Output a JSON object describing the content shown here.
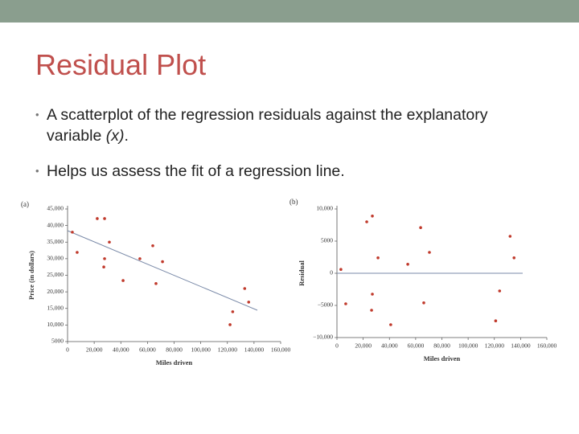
{
  "header": {
    "title": "Residual Plot"
  },
  "bullets": [
    {
      "parts": [
        "A scatterplot of the regression residuals against the explanatory variable ",
        "(x)",
        "."
      ]
    },
    {
      "parts": [
        "Helps us assess the fit of a regression line."
      ]
    }
  ],
  "chart_data": [
    {
      "type": "scatter",
      "panel": "(a)",
      "x_label": "Miles driven",
      "y_label": "Price (in dollars)",
      "color": "#c0392b",
      "x": [
        3600,
        7200,
        22300,
        27800,
        31400,
        27800,
        27200,
        41700,
        54300,
        64000,
        66400,
        71300,
        122000,
        124000,
        133000,
        136000
      ],
      "values": [
        38000,
        31900,
        42100,
        42100,
        35000,
        30000,
        27500,
        23400,
        30000,
        33900,
        22500,
        29100,
        10100,
        14000,
        21000,
        16900
      ],
      "regression_line": {
        "x": [
          0,
          142500
        ],
        "y": [
          38450,
          14450
        ]
      },
      "xlim": [
        0,
        160000
      ],
      "xticks": [
        0,
        {
          "value": 20000,
          "label": "20,000"
        },
        {
          "value": 40000,
          "label": "40,000"
        },
        {
          "value": 60000,
          "label": "60,000"
        },
        {
          "value": 80000,
          "label": "80,000"
        },
        {
          "value": 100000,
          "label": "100,000"
        },
        {
          "value": 120000,
          "label": "120,000"
        },
        {
          "value": 140000,
          "label": "140,000"
        },
        {
          "value": 160000,
          "label": "160,000"
        }
      ],
      "ylim": [
        5000,
        45000
      ],
      "yticks": [
        5000,
        {
          "value": 10000,
          "label": "10,000"
        },
        {
          "value": 15000,
          "label": "15,000"
        },
        {
          "value": 20000,
          "label": "20,000"
        },
        {
          "value": 25000,
          "label": "25,000"
        },
        {
          "value": 30000,
          "label": "30,000"
        },
        {
          "value": 35000,
          "label": "35,000"
        },
        {
          "value": 40000,
          "label": "40,000"
        },
        {
          "value": 45000,
          "label": "45,000"
        }
      ]
    },
    {
      "type": "scatter",
      "panel": "(b)",
      "x_label": "Miles driven",
      "y_label": "Residual",
      "color": "#c0392b",
      "x": [
        3000,
        6700,
        22700,
        27000,
        31300,
        27000,
        26400,
        41000,
        54000,
        63800,
        66200,
        70500,
        121000,
        124000,
        132000,
        135000
      ],
      "values": [
        600,
        -4750,
        8000,
        8900,
        2400,
        -3250,
        -5750,
        -8000,
        1400,
        7100,
        -4600,
        3250,
        -7400,
        -2750,
        5750,
        2400
      ],
      "reference_line": 0,
      "xlim": [
        0,
        160000
      ],
      "xticks": [
        0,
        {
          "value": 20000,
          "label": "20,000"
        },
        {
          "value": 40000,
          "label": "40,000"
        },
        {
          "value": 60000,
          "label": "60,000"
        },
        {
          "value": 80000,
          "label": "80,000"
        },
        {
          "value": 100000,
          "label": "100,000"
        },
        {
          "value": 120000,
          "label": "120,000"
        },
        {
          "value": 140000,
          "label": "140,000"
        },
        {
          "value": 160000,
          "label": "160,000"
        }
      ],
      "ylim": [
        -10000,
        10000
      ],
      "yticks": [
        {
          "value": -10000,
          "label": "−10,000"
        },
        {
          "value": -5000,
          "label": "−5000"
        },
        0,
        5000,
        {
          "value": 10000,
          "label": "10,000"
        }
      ]
    }
  ]
}
